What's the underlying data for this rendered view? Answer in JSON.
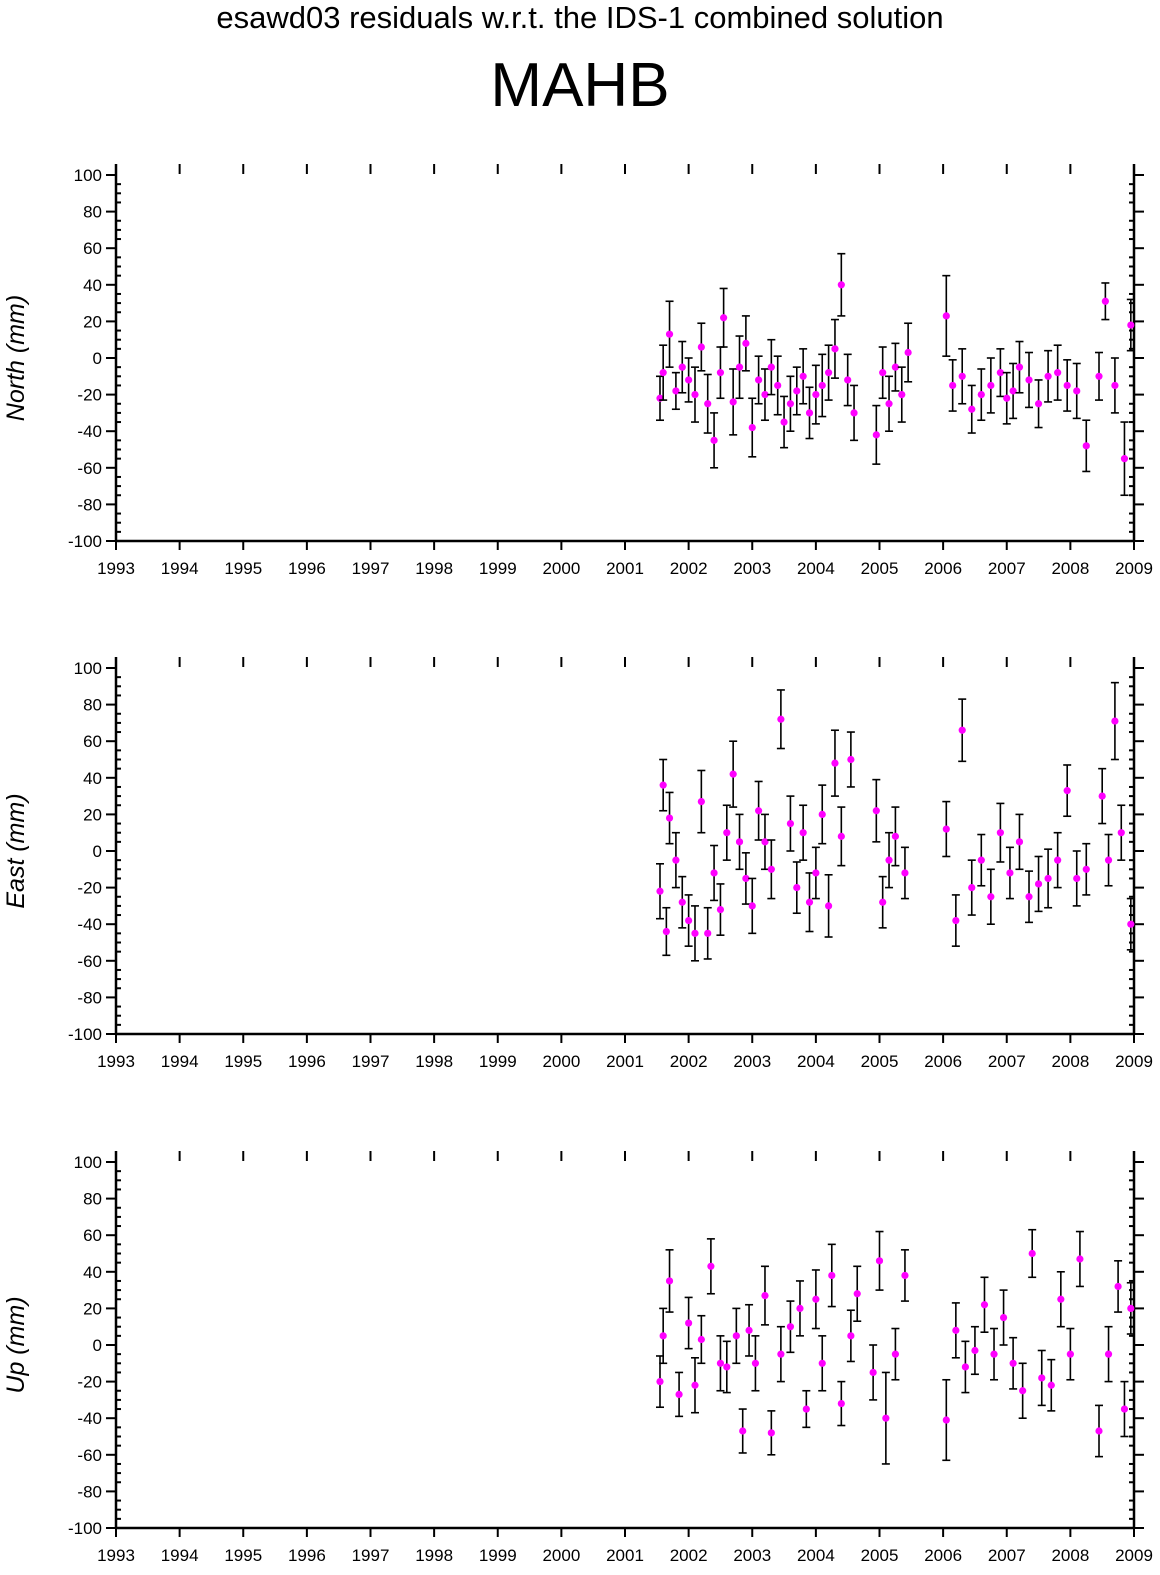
{
  "title": "esawd03 residuals w.r.t. the IDS-1 combined solution",
  "station": "MAHB",
  "colors": {
    "point": "#ff00ff",
    "errorbar": "#000000",
    "axis": "#000000"
  },
  "chart_data": [
    {
      "type": "scatter",
      "ylabel": "North (mm)",
      "xlim": [
        1993,
        2009
      ],
      "ylim": [
        -100,
        100
      ],
      "x_ticks": [
        "1993",
        "1994",
        "1995",
        "1996",
        "1997",
        "1998",
        "1999",
        "2000",
        "2001",
        "2002",
        "2003",
        "2004",
        "2005",
        "2006",
        "2007",
        "2008",
        "2009"
      ],
      "y_ticks": [
        "100",
        "80",
        "60",
        "40",
        "20",
        "0",
        "-20",
        "-40",
        "-60",
        "-80",
        "-100"
      ],
      "series": [
        {
          "x": [
            2001.55,
            2001.6,
            2001.7,
            2001.8,
            2001.9,
            2002.0,
            2002.1,
            2002.2,
            2002.3,
            2002.4,
            2002.5,
            2002.55,
            2002.7,
            2002.8,
            2002.9,
            2003.0,
            2003.1,
            2003.2,
            2003.3,
            2003.4,
            2003.5,
            2003.6,
            2003.7,
            2003.8,
            2003.9,
            2004.0,
            2004.1,
            2004.2,
            2004.3,
            2004.4,
            2004.5,
            2004.6,
            2004.95,
            2005.05,
            2005.15,
            2005.25,
            2005.35,
            2005.45,
            2006.05,
            2006.15,
            2006.3,
            2006.45,
            2006.6,
            2006.75,
            2006.9,
            2007.0,
            2007.1,
            2007.2,
            2007.35,
            2007.5,
            2007.65,
            2007.8,
            2007.95,
            2008.1,
            2008.25,
            2008.45,
            2008.55,
            2008.7,
            2008.85,
            2008.95
          ],
          "y": [
            -22,
            -8,
            13,
            -18,
            -5,
            -12,
            -20,
            6,
            -25,
            -45,
            -8,
            22,
            -24,
            -5,
            8,
            -38,
            -12,
            -20,
            -5,
            -15,
            -35,
            -25,
            -18,
            -10,
            -30,
            -20,
            -15,
            -8,
            5,
            40,
            -12,
            -30,
            -42,
            -8,
            -25,
            -5,
            -20,
            3,
            23,
            -15,
            -10,
            -28,
            -20,
            -15,
            -8,
            -22,
            -18,
            -5,
            -12,
            -25,
            -10,
            -8,
            -15,
            -18,
            -48,
            -10,
            31,
            -15,
            -55,
            18
          ],
          "err": [
            12,
            15,
            18,
            10,
            14,
            12,
            15,
            13,
            16,
            15,
            14,
            16,
            18,
            17,
            15,
            16,
            13,
            14,
            15,
            16,
            14,
            15,
            13,
            15,
            14,
            16,
            17,
            15,
            16,
            17,
            14,
            15,
            16,
            14,
            15,
            13,
            15,
            16,
            22,
            14,
            15,
            13,
            14,
            15,
            13,
            14,
            15,
            14,
            15,
            13,
            14,
            15,
            14,
            15,
            14,
            13,
            10,
            15,
            20,
            14
          ]
        }
      ]
    },
    {
      "type": "scatter",
      "ylabel": "East (mm)",
      "xlim": [
        1993,
        2009
      ],
      "ylim": [
        -100,
        100
      ],
      "x_ticks": [
        "1993",
        "1994",
        "1995",
        "1996",
        "1997",
        "1998",
        "1999",
        "2000",
        "2001",
        "2002",
        "2003",
        "2004",
        "2005",
        "2006",
        "2007",
        "2008",
        "2009"
      ],
      "y_ticks": [
        "100",
        "80",
        "60",
        "40",
        "20",
        "0",
        "-20",
        "-40",
        "-60",
        "-80",
        "-100"
      ],
      "series": [
        {
          "x": [
            2001.55,
            2001.6,
            2001.65,
            2001.7,
            2001.8,
            2001.9,
            2002.0,
            2002.1,
            2002.2,
            2002.3,
            2002.4,
            2002.5,
            2002.6,
            2002.7,
            2002.8,
            2002.9,
            2003.0,
            2003.1,
            2003.2,
            2003.3,
            2003.45,
            2003.6,
            2003.7,
            2003.8,
            2003.9,
            2004.0,
            2004.1,
            2004.2,
            2004.3,
            2004.4,
            2004.55,
            2004.95,
            2005.05,
            2005.15,
            2005.25,
            2005.4,
            2006.05,
            2006.2,
            2006.3,
            2006.45,
            2006.6,
            2006.75,
            2006.9,
            2007.05,
            2007.2,
            2007.35,
            2007.5,
            2007.65,
            2007.8,
            2007.95,
            2008.1,
            2008.25,
            2008.5,
            2008.6,
            2008.7,
            2008.8,
            2008.95
          ],
          "y": [
            -22,
            36,
            -44,
            18,
            -5,
            -28,
            -38,
            -45,
            27,
            -45,
            -12,
            -32,
            10,
            42,
            5,
            -15,
            -30,
            22,
            5,
            -10,
            72,
            15,
            -20,
            10,
            -28,
            -12,
            20,
            -30,
            48,
            8,
            50,
            22,
            -28,
            -5,
            8,
            -12,
            12,
            -38,
            66,
            -20,
            -5,
            -25,
            10,
            -12,
            5,
            -25,
            -18,
            -15,
            -5,
            33,
            -15,
            -10,
            30,
            -5,
            71,
            10,
            -40
          ],
          "err": [
            15,
            14,
            13,
            14,
            15,
            14,
            14,
            15,
            17,
            14,
            15,
            14,
            15,
            18,
            15,
            14,
            15,
            16,
            15,
            16,
            16,
            15,
            14,
            15,
            16,
            14,
            16,
            17,
            18,
            16,
            15,
            17,
            14,
            15,
            16,
            14,
            15,
            14,
            17,
            15,
            14,
            15,
            16,
            14,
            15,
            14,
            15,
            16,
            15,
            14,
            15,
            14,
            15,
            14,
            21,
            15,
            14
          ]
        }
      ]
    },
    {
      "type": "scatter",
      "ylabel": "Up (mm)",
      "xlim": [
        1993,
        2009
      ],
      "ylim": [
        -100,
        100
      ],
      "x_ticks": [
        "1993",
        "1994",
        "1995",
        "1996",
        "1997",
        "1998",
        "1999",
        "2000",
        "2001",
        "2002",
        "2003",
        "2004",
        "2005",
        "2006",
        "2007",
        "2008",
        "2009"
      ],
      "y_ticks": [
        "100",
        "80",
        "60",
        "40",
        "20",
        "0",
        "-20",
        "-40",
        "-60",
        "-80",
        "-100"
      ],
      "series": [
        {
          "x": [
            2001.55,
            2001.6,
            2001.7,
            2001.85,
            2002.0,
            2002.1,
            2002.2,
            2002.35,
            2002.5,
            2002.6,
            2002.75,
            2002.85,
            2002.95,
            2003.05,
            2003.2,
            2003.3,
            2003.45,
            2003.6,
            2003.75,
            2003.85,
            2004.0,
            2004.1,
            2004.25,
            2004.4,
            2004.55,
            2004.65,
            2004.9,
            2005.0,
            2005.1,
            2005.25,
            2005.4,
            2006.05,
            2006.2,
            2006.35,
            2006.5,
            2006.65,
            2006.8,
            2006.95,
            2007.1,
            2007.25,
            2007.4,
            2007.55,
            2007.7,
            2007.85,
            2008.0,
            2008.15,
            2008.45,
            2008.6,
            2008.75,
            2008.85,
            2008.95
          ],
          "y": [
            -20,
            5,
            35,
            -27,
            12,
            -22,
            3,
            43,
            -10,
            -12,
            5,
            -47,
            8,
            -10,
            27,
            -48,
            -5,
            10,
            20,
            -35,
            25,
            -10,
            38,
            -32,
            5,
            28,
            -15,
            46,
            -40,
            -5,
            38,
            -41,
            8,
            -12,
            -3,
            22,
            -5,
            15,
            -10,
            -25,
            50,
            -18,
            -22,
            25,
            -5,
            47,
            -47,
            -5,
            32,
            -35,
            20
          ],
          "err": [
            14,
            15,
            17,
            12,
            14,
            15,
            13,
            15,
            15,
            14,
            15,
            12,
            14,
            15,
            16,
            12,
            15,
            14,
            15,
            10,
            16,
            15,
            17,
            12,
            14,
            15,
            15,
            16,
            25,
            14,
            14,
            22,
            15,
            14,
            13,
            15,
            14,
            15,
            14,
            15,
            13,
            15,
            14,
            15,
            14,
            15,
            14,
            15,
            14,
            15,
            14
          ]
        }
      ]
    }
  ]
}
